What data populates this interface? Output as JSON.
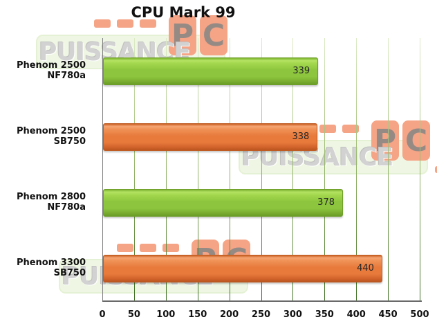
{
  "title": "CPU Mark 99",
  "chart_data": {
    "type": "bar",
    "orientation": "horizontal",
    "title": "CPU Mark 99",
    "categories": [
      "Phenom 2500 NF780a",
      "Phenom 2500 SB750",
      "Phenom 2800 NF780a",
      "Phenom 3300 SB750"
    ],
    "values": [
      339,
      338,
      378,
      440
    ],
    "bar_colors": [
      "#8dc63e",
      "#e87a3c",
      "#8dc63e",
      "#e87a3c"
    ],
    "value_labels_shown": true,
    "xlabel": "",
    "ylabel": "",
    "xlim": [
      0,
      500
    ],
    "x_ticks": [
      0,
      50,
      100,
      150,
      200,
      250,
      300,
      350,
      400,
      450,
      500
    ],
    "grid": true,
    "legend": false
  },
  "watermark": {
    "brand": "PUISSANCE",
    "suffix_letters": [
      "P",
      "C"
    ],
    "accent_orange": "#ee5a24",
    "text_gray": "#aeaeae",
    "panel_green": "#e3f2cf"
  },
  "colors": {
    "bar_green": "#8dc63e",
    "bar_orange": "#e87a3c",
    "grid_green_light": "#dcebc6",
    "grid_green_dark": "#3c6e21",
    "axis_gray": "#7f7f7f",
    "text": "#111111",
    "background": "#ffffff"
  }
}
